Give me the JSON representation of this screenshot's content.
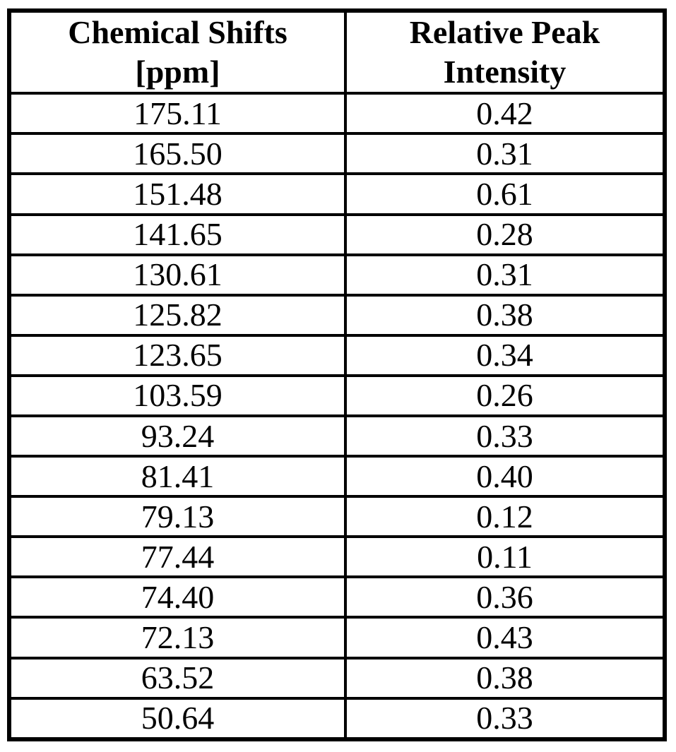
{
  "colors": {
    "background": "#ffffff",
    "border": "#000000",
    "text": "#000000"
  },
  "table": {
    "headers": [
      {
        "lines": [
          "Chemical Shifts",
          "[ppm]"
        ]
      },
      {
        "lines": [
          "Relative Peak",
          "Intensity"
        ]
      }
    ],
    "rows": [
      [
        "175.11",
        "0.42"
      ],
      [
        "165.50",
        "0.31"
      ],
      [
        "151.48",
        "0.61"
      ],
      [
        "141.65",
        "0.28"
      ],
      [
        "130.61",
        "0.31"
      ],
      [
        "125.82",
        "0.38"
      ],
      [
        "123.65",
        "0.34"
      ],
      [
        "103.59",
        "0.26"
      ],
      [
        "93.24",
        "0.33"
      ],
      [
        "81.41",
        "0.40"
      ],
      [
        "79.13",
        "0.12"
      ],
      [
        "77.44",
        "0.11"
      ],
      [
        "74.40",
        "0.36"
      ],
      [
        "72.13",
        "0.43"
      ],
      [
        "63.52",
        "0.38"
      ],
      [
        "50.64",
        "0.33"
      ]
    ]
  }
}
